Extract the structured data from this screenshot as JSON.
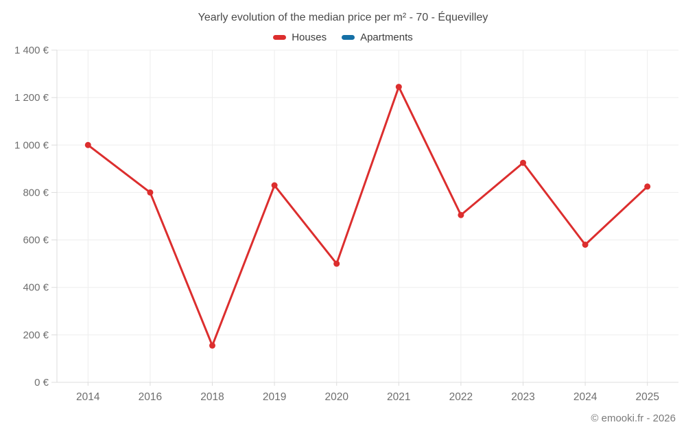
{
  "title": "Yearly evolution of the median price per m² - 70 - Équevilley",
  "legend_items": [
    {
      "label": "Houses",
      "color": "#dc2e2e"
    },
    {
      "label": "Apartments",
      "color": "#1570a6"
    }
  ],
  "footer": "© emooki.fr - 2026",
  "chart_data": {
    "type": "line",
    "title": "Yearly evolution of the median price per m² - 70 - Équevilley",
    "categories": [
      "2014",
      "2016",
      "2018",
      "2019",
      "2020",
      "2021",
      "2022",
      "2023",
      "2024",
      "2025"
    ],
    "series": [
      {
        "name": "Houses",
        "color": "#dc2e2e",
        "values": [
          1000,
          800,
          155,
          830,
          500,
          1245,
          705,
          925,
          580,
          825
        ]
      },
      {
        "name": "Apartments",
        "color": "#1570a6",
        "values": []
      }
    ],
    "xlabel": "",
    "ylabel": "",
    "ylim": [
      0,
      1400
    ],
    "ytick_step": 200,
    "ytick_format": "{value} €",
    "grid": true,
    "legend_position": "top"
  }
}
